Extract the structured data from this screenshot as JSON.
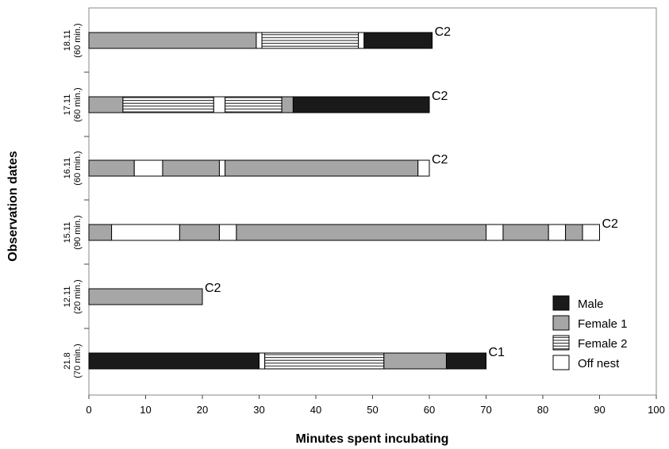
{
  "chart_data": {
    "type": "bar",
    "orientation": "horizontal",
    "stacked": true,
    "xlabel": "Minutes spent incubating",
    "ylabel": "Observation dates",
    "xlim": [
      0,
      100
    ],
    "xticks": [
      0,
      10,
      20,
      30,
      40,
      50,
      60,
      70,
      80,
      90,
      100
    ],
    "grid": false,
    "legend_position": "bottom-right",
    "legend": [
      {
        "key": "male",
        "label": "Male",
        "fill": "#1a1a1a",
        "pattern": "solid"
      },
      {
        "key": "female1",
        "label": "Female 1",
        "fill": "#a6a6a6",
        "pattern": "solid"
      },
      {
        "key": "female2",
        "label": "Female 2",
        "fill": "#ffffff",
        "pattern": "horizontal-lines"
      },
      {
        "key": "off",
        "label": "Off nest",
        "fill": "#ffffff",
        "pattern": "solid"
      }
    ],
    "rows": [
      {
        "date": "18.11",
        "duration": "(60 min.)",
        "end_label": "C2",
        "segments": [
          {
            "state": "female1",
            "start": 0,
            "end": 29.5
          },
          {
            "state": "off",
            "start": 29.5,
            "end": 30.5
          },
          {
            "state": "female2",
            "start": 30.5,
            "end": 47.5
          },
          {
            "state": "off",
            "start": 47.5,
            "end": 48.5
          },
          {
            "state": "male",
            "start": 48.5,
            "end": 60.5
          }
        ]
      },
      {
        "date": "17.11",
        "duration": "(60 min.)",
        "end_label": "C2",
        "segments": [
          {
            "state": "female1",
            "start": 0,
            "end": 6
          },
          {
            "state": "female2",
            "start": 6,
            "end": 22
          },
          {
            "state": "off",
            "start": 22,
            "end": 24
          },
          {
            "state": "female2",
            "start": 24,
            "end": 34
          },
          {
            "state": "female1",
            "start": 34,
            "end": 36
          },
          {
            "state": "male",
            "start": 36,
            "end": 60
          }
        ]
      },
      {
        "date": "16.11",
        "duration": "(60 min.)",
        "end_label": "C2",
        "segments": [
          {
            "state": "female1",
            "start": 0,
            "end": 8
          },
          {
            "state": "off",
            "start": 8,
            "end": 13
          },
          {
            "state": "female1",
            "start": 13,
            "end": 23
          },
          {
            "state": "off",
            "start": 23,
            "end": 24
          },
          {
            "state": "female1",
            "start": 24,
            "end": 58
          },
          {
            "state": "off",
            "start": 58,
            "end": 60
          }
        ]
      },
      {
        "date": "15.11",
        "duration": "(90 min.)",
        "end_label": "C2",
        "segments": [
          {
            "state": "female1",
            "start": 0,
            "end": 4
          },
          {
            "state": "off",
            "start": 4,
            "end": 16
          },
          {
            "state": "female1",
            "start": 16,
            "end": 23
          },
          {
            "state": "off",
            "start": 23,
            "end": 26
          },
          {
            "state": "female1",
            "start": 26,
            "end": 70
          },
          {
            "state": "off",
            "start": 70,
            "end": 73
          },
          {
            "state": "female1",
            "start": 73,
            "end": 81
          },
          {
            "state": "off",
            "start": 81,
            "end": 84
          },
          {
            "state": "female1",
            "start": 84,
            "end": 87
          },
          {
            "state": "off",
            "start": 87,
            "end": 90
          }
        ]
      },
      {
        "date": "12.11",
        "duration": "(20 min.)",
        "end_label": "C2",
        "segments": [
          {
            "state": "female1",
            "start": 0,
            "end": 20
          }
        ]
      },
      {
        "date": "21.8",
        "duration": "(70 min.)",
        "end_label": "C1",
        "segments": [
          {
            "state": "male",
            "start": 0,
            "end": 30
          },
          {
            "state": "off",
            "start": 30,
            "end": 31
          },
          {
            "state": "female2",
            "start": 31,
            "end": 52
          },
          {
            "state": "female1",
            "start": 52,
            "end": 63
          },
          {
            "state": "male",
            "start": 63,
            "end": 70
          }
        ]
      }
    ]
  }
}
